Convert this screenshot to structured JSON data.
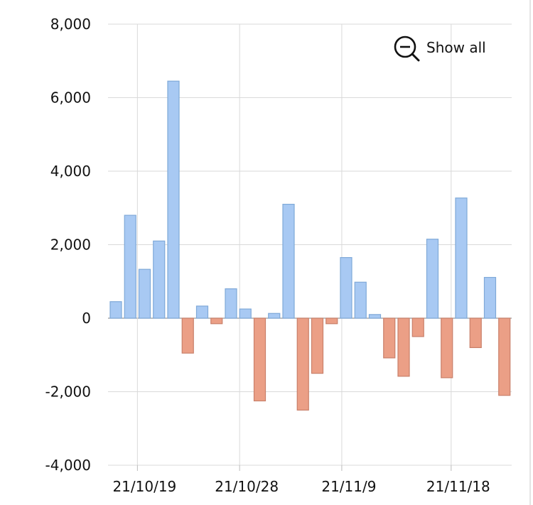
{
  "show_all_button": {
    "label": "Show all",
    "icon": "zoom-out-icon"
  },
  "chart_data": {
    "type": "bar",
    "title": "",
    "xlabel": "",
    "ylabel": "",
    "ylim": [
      -4000,
      8000
    ],
    "yticks": [
      8000,
      6000,
      4000,
      2000,
      0,
      -2000,
      -4000
    ],
    "ytick_labels": [
      "8,000",
      "6,000",
      "4,000",
      "2,000",
      "0",
      "-2,000",
      "-4,000"
    ],
    "xtick_labels": [
      "21/10/19",
      "21/10/28",
      "21/11/9",
      "21/11/18"
    ],
    "xtick_bar_index": [
      1.5,
      8.6,
      15.7,
      23.3
    ],
    "values": [
      450,
      2800,
      1330,
      2100,
      6450,
      -950,
      330,
      -150,
      800,
      250,
      -2250,
      130,
      3100,
      -2500,
      -1500,
      -150,
      1650,
      980,
      100,
      -1080,
      -1580,
      -500,
      2150,
      -1620,
      3270,
      -800,
      1110,
      -2100
    ],
    "grid": true,
    "colors": {
      "positive": "#a8c9f3",
      "positive_stroke": "#7fa9d8",
      "negative": "#eb9f86",
      "negative_stroke": "#c9806a"
    }
  }
}
